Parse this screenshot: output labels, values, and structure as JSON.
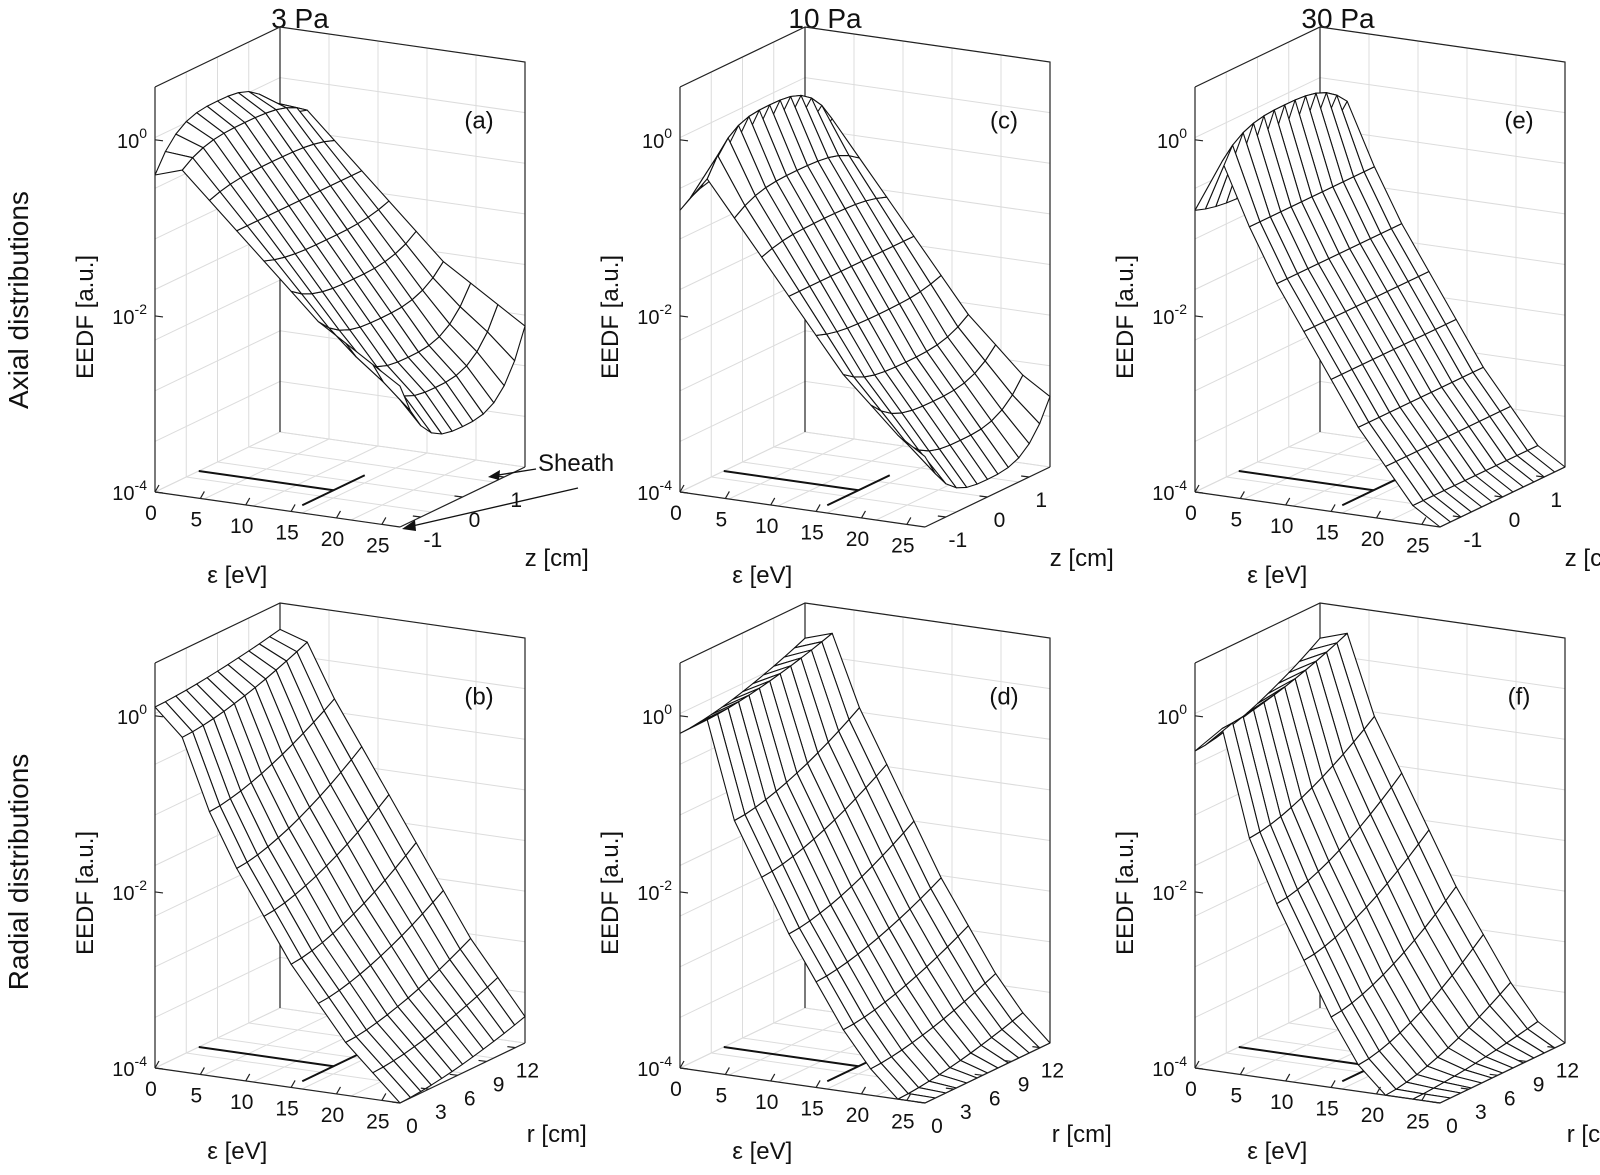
{
  "figure": {
    "column_titles": [
      "3 Pa",
      "10 Pa",
      "30 Pa"
    ],
    "row_labels": [
      "Axial distributions",
      "Radial distributions"
    ],
    "annotation": "Sheath"
  },
  "chart_data": [
    {
      "type": "surface",
      "panel": "(a)",
      "pressure": "3 Pa",
      "row": "axial",
      "xlabel": "ε [eV]",
      "ylabel": "z [cm]",
      "zlabel": "EEDF [a.u.]",
      "xlim": [
        0,
        27
      ],
      "ylim": [
        -1.5,
        1.5
      ],
      "zlim_log10": [
        -4,
        0.6
      ],
      "x_ticks": [
        "0",
        "5",
        "10",
        "15",
        "20",
        "25"
      ],
      "y_ticks": [
        "-1",
        "0",
        "1"
      ],
      "z_ticks": [
        {
          "base": "10",
          "exp": "0"
        },
        {
          "base": "10",
          "exp": "-2"
        },
        {
          "base": "10",
          "exp": "-4"
        }
      ],
      "log10_center": [
        0.1,
        -0.1,
        -0.5,
        -0.9,
        -1.3,
        -1.7,
        -2.1,
        -2.5,
        -2.8,
        -3.2
      ],
      "log10_edge": [
        -0.4,
        -0.3,
        -0.6,
        -0.9,
        -1.2,
        -1.5,
        -1.8,
        -2.0,
        -2.2,
        -2.4
      ],
      "energy_eV": [
        0,
        3,
        6,
        9,
        12,
        15,
        18,
        21,
        24,
        27
      ]
    },
    {
      "type": "surface",
      "panel": "(b)",
      "pressure": "3 Pa",
      "row": "radial",
      "xlabel": "ε [eV]",
      "ylabel": "r [cm]",
      "zlabel": "EEDF [a.u.]",
      "xlim": [
        0,
        27
      ],
      "ylim": [
        0,
        13
      ],
      "zlim_log10": [
        -4,
        0.6
      ],
      "x_ticks": [
        "0",
        "5",
        "10",
        "15",
        "20",
        "25"
      ],
      "y_ticks": [
        "0",
        "3",
        "6",
        "9",
        "12"
      ],
      "z_ticks": [
        {
          "base": "10",
          "exp": "0"
        },
        {
          "base": "10",
          "exp": "-2"
        },
        {
          "base": "10",
          "exp": "-4"
        }
      ],
      "log10_center": [
        0.1,
        -0.2,
        -1.0,
        -1.6,
        -2.1,
        -2.6,
        -3.0,
        -3.4,
        -3.7,
        -4.0
      ],
      "log10_edge": [
        0.3,
        0.2,
        -0.4,
        -0.9,
        -1.4,
        -1.9,
        -2.4,
        -2.9,
        -3.3,
        -3.7
      ],
      "energy_eV": [
        0,
        3,
        6,
        9,
        12,
        15,
        18,
        21,
        24,
        27
      ]
    },
    {
      "type": "surface",
      "panel": "(c)",
      "pressure": "10 Pa",
      "row": "axial",
      "xlabel": "ε [eV]",
      "ylabel": "z [cm]",
      "zlabel": "EEDF [a.u.]",
      "xlim": [
        0,
        27
      ],
      "ylim": [
        -1.5,
        1.5
      ],
      "zlim_log10": [
        -4,
        0.6
      ],
      "x_ticks": [
        "0",
        "5",
        "10",
        "15",
        "20",
        "25"
      ],
      "y_ticks": [
        "-1",
        "0",
        "1"
      ],
      "z_ticks": [
        {
          "base": "10",
          "exp": "0"
        },
        {
          "base": "10",
          "exp": "-2"
        },
        {
          "base": "10",
          "exp": "-4"
        }
      ],
      "log10_center": [
        -0.6,
        0.1,
        -0.6,
        -1.1,
        -1.6,
        -2.1,
        -2.6,
        -3.0,
        -3.4,
        -3.8
      ],
      "log10_edge": [
        -0.8,
        -0.4,
        -0.8,
        -1.2,
        -1.6,
        -2.0,
        -2.4,
        -2.7,
        -3.0,
        -3.2
      ],
      "energy_eV": [
        0,
        3,
        6,
        9,
        12,
        15,
        18,
        21,
        24,
        27
      ]
    },
    {
      "type": "surface",
      "panel": "(d)",
      "pressure": "10 Pa",
      "row": "radial",
      "xlabel": "ε [eV]",
      "ylabel": "r [cm]",
      "zlabel": "EEDF [a.u.]",
      "xlim": [
        0,
        27
      ],
      "ylim": [
        0,
        13
      ],
      "zlim_log10": [
        -4,
        0.6
      ],
      "x_ticks": [
        "0",
        "5",
        "10",
        "15",
        "20",
        "25"
      ],
      "y_ticks": [
        "0",
        "3",
        "6",
        "9",
        "12"
      ],
      "z_ticks": [
        {
          "base": "10",
          "exp": "0"
        },
        {
          "base": "10",
          "exp": "-2"
        },
        {
          "base": "10",
          "exp": "-4"
        }
      ],
      "log10_center": [
        -0.2,
        0.0,
        -1.1,
        -1.7,
        -2.3,
        -2.8,
        -3.3,
        -3.7,
        -4.0,
        -4.0
      ],
      "log10_edge": [
        0.2,
        0.3,
        -0.5,
        -1.1,
        -1.7,
        -2.3,
        -2.8,
        -3.3,
        -3.7,
        -4.0
      ],
      "energy_eV": [
        0,
        3,
        6,
        9,
        12,
        15,
        18,
        21,
        24,
        27
      ]
    },
    {
      "type": "surface",
      "panel": "(e)",
      "pressure": "30 Pa",
      "row": "axial",
      "xlabel": "ε [eV]",
      "ylabel": "z [cm]",
      "zlabel": "EEDF [a.u.]",
      "xlim": [
        0,
        27
      ],
      "ylim": [
        -1.5,
        1.5
      ],
      "zlim_log10": [
        -4,
        0.6
      ],
      "x_ticks": [
        "0",
        "5",
        "10",
        "15",
        "20",
        "25"
      ],
      "y_ticks": [
        "-1",
        "0",
        "1"
      ],
      "z_ticks": [
        {
          "base": "10",
          "exp": "0"
        },
        {
          "base": "10",
          "exp": "-2"
        },
        {
          "base": "10",
          "exp": "-4"
        }
      ],
      "log10_center": [
        -0.9,
        0.1,
        -0.9,
        -1.5,
        -2.0,
        -2.5,
        -3.0,
        -3.4,
        -3.8,
        -4.0
      ],
      "log10_edge": [
        -0.8,
        -0.2,
        -0.9,
        -1.5,
        -2.0,
        -2.5,
        -3.0,
        -3.4,
        -3.8,
        -4.0
      ],
      "energy_eV": [
        0,
        3,
        6,
        9,
        12,
        15,
        18,
        21,
        24,
        27
      ]
    },
    {
      "type": "surface",
      "panel": "(f)",
      "pressure": "30 Pa",
      "row": "radial",
      "xlabel": "ε [eV]",
      "ylabel": "r [cm]",
      "zlabel": "EEDF [a.u.]",
      "xlim": [
        0,
        27
      ],
      "ylim": [
        0,
        13
      ],
      "zlim_log10": [
        -4,
        0.6
      ],
      "x_ticks": [
        "0",
        "5",
        "10",
        "15",
        "20",
        "25"
      ],
      "y_ticks": [
        "0",
        "3",
        "6",
        "9",
        "12"
      ],
      "z_ticks": [
        {
          "base": "10",
          "exp": "0"
        },
        {
          "base": "10",
          "exp": "-2"
        },
        {
          "base": "10",
          "exp": "-4"
        }
      ],
      "log10_center": [
        -0.4,
        -0.1,
        -1.3,
        -2.0,
        -2.6,
        -3.2,
        -3.7,
        -4.0,
        -4.0,
        -4.0
      ],
      "log10_edge": [
        0.2,
        0.3,
        -0.6,
        -1.2,
        -1.8,
        -2.4,
        -2.9,
        -3.4,
        -3.8,
        -4.0
      ],
      "energy_eV": [
        0,
        3,
        6,
        9,
        12,
        15,
        18,
        21,
        24,
        27
      ]
    }
  ]
}
